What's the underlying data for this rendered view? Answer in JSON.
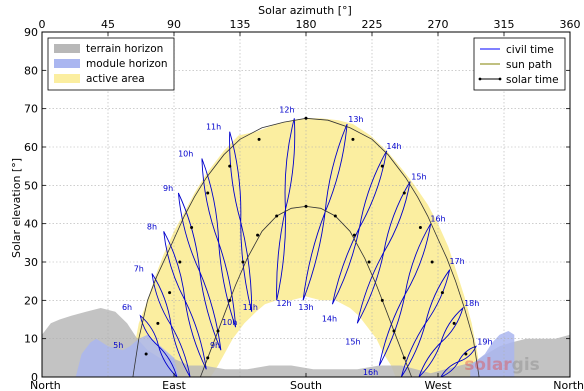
{
  "chart_data": {
    "type": "line",
    "top_axis_label": "Solar azimuth [°]",
    "ylabel": "Solar elevation [°]",
    "xlim": [
      0,
      360
    ],
    "ylim": [
      0,
      90
    ],
    "grid": true,
    "top_ticks": [
      {
        "value": 0,
        "label": "0"
      },
      {
        "value": 45,
        "label": "45"
      },
      {
        "value": 90,
        "label": "90"
      },
      {
        "value": 135,
        "label": "135"
      },
      {
        "value": 180,
        "label": "180"
      },
      {
        "value": 225,
        "label": "225"
      },
      {
        "value": 270,
        "label": "270"
      },
      {
        "value": 315,
        "label": "315"
      },
      {
        "value": 360,
        "label": "360"
      }
    ],
    "bottom_ticks": [
      {
        "value": 0,
        "label": "North"
      },
      {
        "value": 90,
        "label": "East"
      },
      {
        "value": 180,
        "label": "South"
      },
      {
        "value": 270,
        "label": "West"
      },
      {
        "value": 360,
        "label": "North"
      }
    ],
    "y_ticks": [
      0,
      10,
      20,
      30,
      40,
      50,
      60,
      70,
      80,
      90
    ],
    "legend_left": [
      {
        "label": "terrain horizon",
        "color": "#b8b8b8"
      },
      {
        "label": "module horizon",
        "color": "#aab6f0"
      },
      {
        "label": "active area",
        "color": "#fbeea0"
      }
    ],
    "legend_right": [
      {
        "label": "civil time",
        "color": "#0000ff",
        "style": "line"
      },
      {
        "label": "sun path",
        "color": "#808000",
        "style": "line"
      },
      {
        "label": "solar time",
        "color": "#000000",
        "style": "dot-line"
      }
    ],
    "terrain_horizon": [
      [
        0,
        11
      ],
      [
        6,
        14
      ],
      [
        12,
        15
      ],
      [
        20,
        16
      ],
      [
        30,
        17
      ],
      [
        40,
        18
      ],
      [
        50,
        17
      ],
      [
        58,
        14
      ],
      [
        65,
        10
      ],
      [
        72,
        7
      ],
      [
        80,
        5
      ],
      [
        88,
        5
      ],
      [
        95,
        4
      ],
      [
        100,
        3
      ],
      [
        110,
        3
      ],
      [
        125,
        2
      ],
      [
        140,
        2
      ],
      [
        155,
        3
      ],
      [
        170,
        3
      ],
      [
        185,
        2
      ],
      [
        200,
        2
      ],
      [
        215,
        2
      ],
      [
        230,
        3
      ],
      [
        245,
        3
      ],
      [
        255,
        2
      ],
      [
        265,
        1
      ],
      [
        275,
        2
      ],
      [
        285,
        3
      ],
      [
        295,
        4
      ],
      [
        303,
        6
      ],
      [
        312,
        8
      ],
      [
        320,
        9
      ],
      [
        330,
        10
      ],
      [
        340,
        10
      ],
      [
        350,
        10
      ],
      [
        360,
        11
      ]
    ],
    "module_horizon_east": [
      [
        23,
        0
      ],
      [
        27,
        6
      ],
      [
        33,
        9
      ],
      [
        37,
        10
      ],
      [
        45,
        8
      ],
      [
        55,
        7
      ],
      [
        60,
        8
      ],
      [
        66,
        10
      ],
      [
        72,
        11
      ],
      [
        78,
        9
      ],
      [
        84,
        7
      ],
      [
        90,
        5
      ],
      [
        93,
        0
      ]
    ],
    "module_horizon_west": [
      [
        292,
        0
      ],
      [
        292,
        3
      ],
      [
        302,
        6
      ],
      [
        307,
        9
      ],
      [
        312,
        11
      ],
      [
        318,
        12
      ],
      [
        322,
        11
      ],
      [
        322,
        0
      ]
    ],
    "active_area_upper": [
      [
        62,
        0
      ],
      [
        62,
        5
      ],
      [
        64,
        10
      ],
      [
        66,
        14
      ],
      [
        68,
        16
      ],
      [
        72,
        20
      ],
      [
        77,
        26
      ],
      [
        83,
        32
      ],
      [
        90,
        38
      ],
      [
        97,
        43
      ],
      [
        104,
        48
      ],
      [
        112,
        53
      ],
      [
        124,
        59
      ],
      [
        134,
        63
      ],
      [
        146,
        64
      ],
      [
        160,
        66
      ],
      [
        172,
        67
      ],
      [
        180,
        67.5
      ],
      [
        190,
        67.5
      ],
      [
        202,
        67
      ],
      [
        212,
        66
      ],
      [
        224,
        63
      ],
      [
        235,
        59
      ],
      [
        246,
        54
      ],
      [
        254,
        50
      ],
      [
        263,
        45
      ],
      [
        270,
        40
      ],
      [
        277,
        34
      ],
      [
        283,
        27
      ],
      [
        288,
        21
      ],
      [
        293,
        14
      ],
      [
        297,
        6
      ],
      [
        299,
        0
      ]
    ],
    "active_area_lower": [
      [
        115,
        0
      ],
      [
        120,
        3
      ],
      [
        130,
        10
      ],
      [
        138,
        14
      ],
      [
        146,
        17
      ],
      [
        152,
        19
      ],
      [
        160,
        20
      ],
      [
        170,
        20
      ],
      [
        180,
        21
      ],
      [
        190,
        20
      ],
      [
        200,
        20
      ],
      [
        210,
        18
      ],
      [
        216,
        16
      ],
      [
        222,
        13
      ],
      [
        228,
        10
      ],
      [
        233,
        6
      ],
      [
        238,
        3
      ],
      [
        241,
        0
      ]
    ],
    "sun_path_upper": [
      [
        62,
        0
      ],
      [
        66,
        10
      ],
      [
        72,
        20
      ],
      [
        78,
        26
      ],
      [
        84,
        31
      ],
      [
        90,
        36
      ],
      [
        97,
        42
      ],
      [
        104,
        47
      ],
      [
        112,
        52
      ],
      [
        124,
        58
      ],
      [
        135,
        62
      ],
      [
        150,
        65
      ],
      [
        165,
        66.5
      ],
      [
        180,
        67.5
      ],
      [
        195,
        67
      ],
      [
        210,
        65
      ],
      [
        225,
        62
      ],
      [
        236,
        58
      ],
      [
        248,
        52
      ],
      [
        256,
        47
      ],
      [
        263,
        42
      ],
      [
        270,
        36
      ],
      [
        276,
        31
      ],
      [
        282,
        25
      ],
      [
        288,
        18
      ],
      [
        294,
        10
      ],
      [
        298,
        0
      ]
    ],
    "sun_path_lower": [
      [
        108,
        0
      ],
      [
        112,
        4
      ],
      [
        118,
        10
      ],
      [
        125,
        17
      ],
      [
        132,
        24
      ],
      [
        140,
        31
      ],
      [
        150,
        38
      ],
      [
        160,
        42
      ],
      [
        170,
        44
      ],
      [
        180,
        44.5
      ],
      [
        190,
        44
      ],
      [
        200,
        42
      ],
      [
        210,
        38
      ],
      [
        220,
        31
      ],
      [
        228,
        24
      ],
      [
        235,
        17
      ],
      [
        242,
        10
      ],
      [
        248,
        4
      ],
      [
        252,
        0
      ]
    ],
    "solar_time_upper": [
      [
        62,
        0
      ],
      [
        71,
        6
      ],
      [
        79,
        14
      ],
      [
        87,
        22
      ],
      [
        94,
        30
      ],
      [
        102,
        39
      ],
      [
        113,
        48
      ],
      [
        128,
        55
      ],
      [
        148,
        62
      ],
      [
        180,
        67.5
      ],
      [
        212,
        62
      ],
      [
        232,
        55
      ],
      [
        247,
        48
      ],
      [
        258,
        39
      ],
      [
        266,
        30
      ],
      [
        273,
        22
      ],
      [
        281,
        14
      ],
      [
        289,
        6
      ],
      [
        298,
        0
      ]
    ],
    "solar_time_lower": [
      [
        108,
        0
      ],
      [
        113,
        5
      ],
      [
        120,
        12
      ],
      [
        128,
        20
      ],
      [
        137,
        30
      ],
      [
        147,
        37
      ],
      [
        160,
        42
      ],
      [
        180,
        44.5
      ],
      [
        200,
        42
      ],
      [
        213,
        37
      ],
      [
        223,
        30
      ],
      [
        232,
        20
      ],
      [
        240,
        12
      ],
      [
        247,
        5
      ],
      [
        252,
        0
      ]
    ],
    "solar_time_upper_points": [
      [
        71,
        6
      ],
      [
        79,
        14
      ],
      [
        87,
        22
      ],
      [
        94,
        30
      ],
      [
        102,
        39
      ],
      [
        113,
        48
      ],
      [
        128,
        55
      ],
      [
        148,
        62
      ],
      [
        180,
        67.5
      ],
      [
        212,
        62
      ],
      [
        232,
        55
      ],
      [
        247,
        48
      ],
      [
        258,
        39
      ],
      [
        266,
        30
      ],
      [
        273,
        22
      ],
      [
        281,
        14
      ],
      [
        289,
        6
      ]
    ],
    "solar_time_lower_points": [
      [
        113,
        5
      ],
      [
        120,
        12
      ],
      [
        128,
        20
      ],
      [
        137,
        30
      ],
      [
        147,
        37
      ],
      [
        160,
        42
      ],
      [
        180,
        44.5
      ],
      [
        200,
        42
      ],
      [
        213,
        37
      ],
      [
        223,
        30
      ],
      [
        232,
        20
      ],
      [
        240,
        12
      ],
      [
        247,
        5
      ]
    ],
    "analemmas": [
      {
        "hour": "5h",
        "top": [
          62,
          -2
        ],
        "bottom": [
          72,
          -2
        ],
        "width": 5
      },
      {
        "hour": "6h",
        "top": [
          67,
          16
        ],
        "bottom": [
          92,
          0
        ],
        "width": 6
      },
      {
        "hour": "7h",
        "top": [
          75,
          27
        ],
        "bottom": [
          101,
          0
        ],
        "width": 6
      },
      {
        "hour": "8h",
        "top": [
          83,
          38
        ],
        "bottom": [
          112,
          2
        ],
        "width": 7
      },
      {
        "hour": "9h",
        "top": [
          93,
          48
        ],
        "bottom": [
          122,
          7
        ],
        "width": 7
      },
      {
        "hour": "10h",
        "top": [
          109,
          57
        ],
        "bottom": [
          132,
          13
        ],
        "width": 7
      },
      {
        "hour": "11h",
        "top": [
          128,
          64
        ],
        "bottom": [
          143,
          17
        ],
        "width": 7
      },
      {
        "hour": "12h",
        "top": [
          172,
          67.5
        ],
        "bottom": [
          160,
          20
        ],
        "width": 7
      },
      {
        "hour": "13h",
        "top": [
          208,
          66
        ],
        "bottom": [
          178,
          20
        ],
        "width": 7
      },
      {
        "hour": "14h",
        "top": [
          235,
          59
        ],
        "bottom": [
          198,
          19
        ],
        "width": 7
      },
      {
        "hour": "15h",
        "top": [
          251,
          51
        ],
        "bottom": [
          215,
          14
        ],
        "width": 7
      },
      {
        "hour": "16h",
        "top": [
          265,
          40
        ],
        "bottom": [
          230,
          3
        ],
        "width": 7
      },
      {
        "hour": "17h",
        "top": [
          278,
          28
        ],
        "bottom": [
          245,
          0
        ],
        "width": 6
      },
      {
        "hour": "18h",
        "top": [
          287,
          18
        ],
        "bottom": [
          257,
          0
        ],
        "width": 6
      },
      {
        "hour": "19h",
        "top": [
          296,
          8
        ],
        "bottom": [
          272,
          0
        ],
        "width": 5
      }
    ],
    "hour_labels": [
      {
        "text": "5h",
        "x": 52,
        "y": 7
      },
      {
        "text": "6h",
        "x": 58,
        "y": 17
      },
      {
        "text": "7h",
        "x": 66,
        "y": 27
      },
      {
        "text": "8h",
        "x": 75,
        "y": 38
      },
      {
        "text": "9h",
        "x": 86,
        "y": 48
      },
      {
        "text": "10h",
        "x": 98,
        "y": 57
      },
      {
        "text": "11h",
        "x": 117,
        "y": 64
      },
      {
        "text": "12h",
        "x": 167,
        "y": 68.5
      },
      {
        "text": "13h",
        "x": 214,
        "y": 66
      },
      {
        "text": "14h",
        "x": 240,
        "y": 59
      },
      {
        "text": "15h",
        "x": 257,
        "y": 51
      },
      {
        "text": "16h",
        "x": 270,
        "y": 40
      },
      {
        "text": "17h",
        "x": 283,
        "y": 29
      },
      {
        "text": "18h",
        "x": 293,
        "y": 18
      },
      {
        "text": "19h",
        "x": 302,
        "y": 8
      },
      {
        "text": "9h",
        "x": 118,
        "y": 7
      },
      {
        "text": "10h",
        "x": 128,
        "y": 13
      },
      {
        "text": "11h",
        "x": 142,
        "y": 17
      },
      {
        "text": "12h",
        "x": 165,
        "y": 18
      },
      {
        "text": "13h",
        "x": 180,
        "y": 17
      },
      {
        "text": "14h",
        "x": 196,
        "y": 14
      },
      {
        "text": "15h",
        "x": 212,
        "y": 8
      },
      {
        "text": "16h",
        "x": 224,
        "y": 0
      }
    ],
    "colors": {
      "terrain": "#b8b8b8",
      "module": "#aab6f0",
      "active": "#fbeea0",
      "civil_time": "#0000cc",
      "sun_path": "#333333",
      "solar_time": "#000000"
    }
  },
  "brand": {
    "part1": "solar",
    "part2": "gis"
  }
}
